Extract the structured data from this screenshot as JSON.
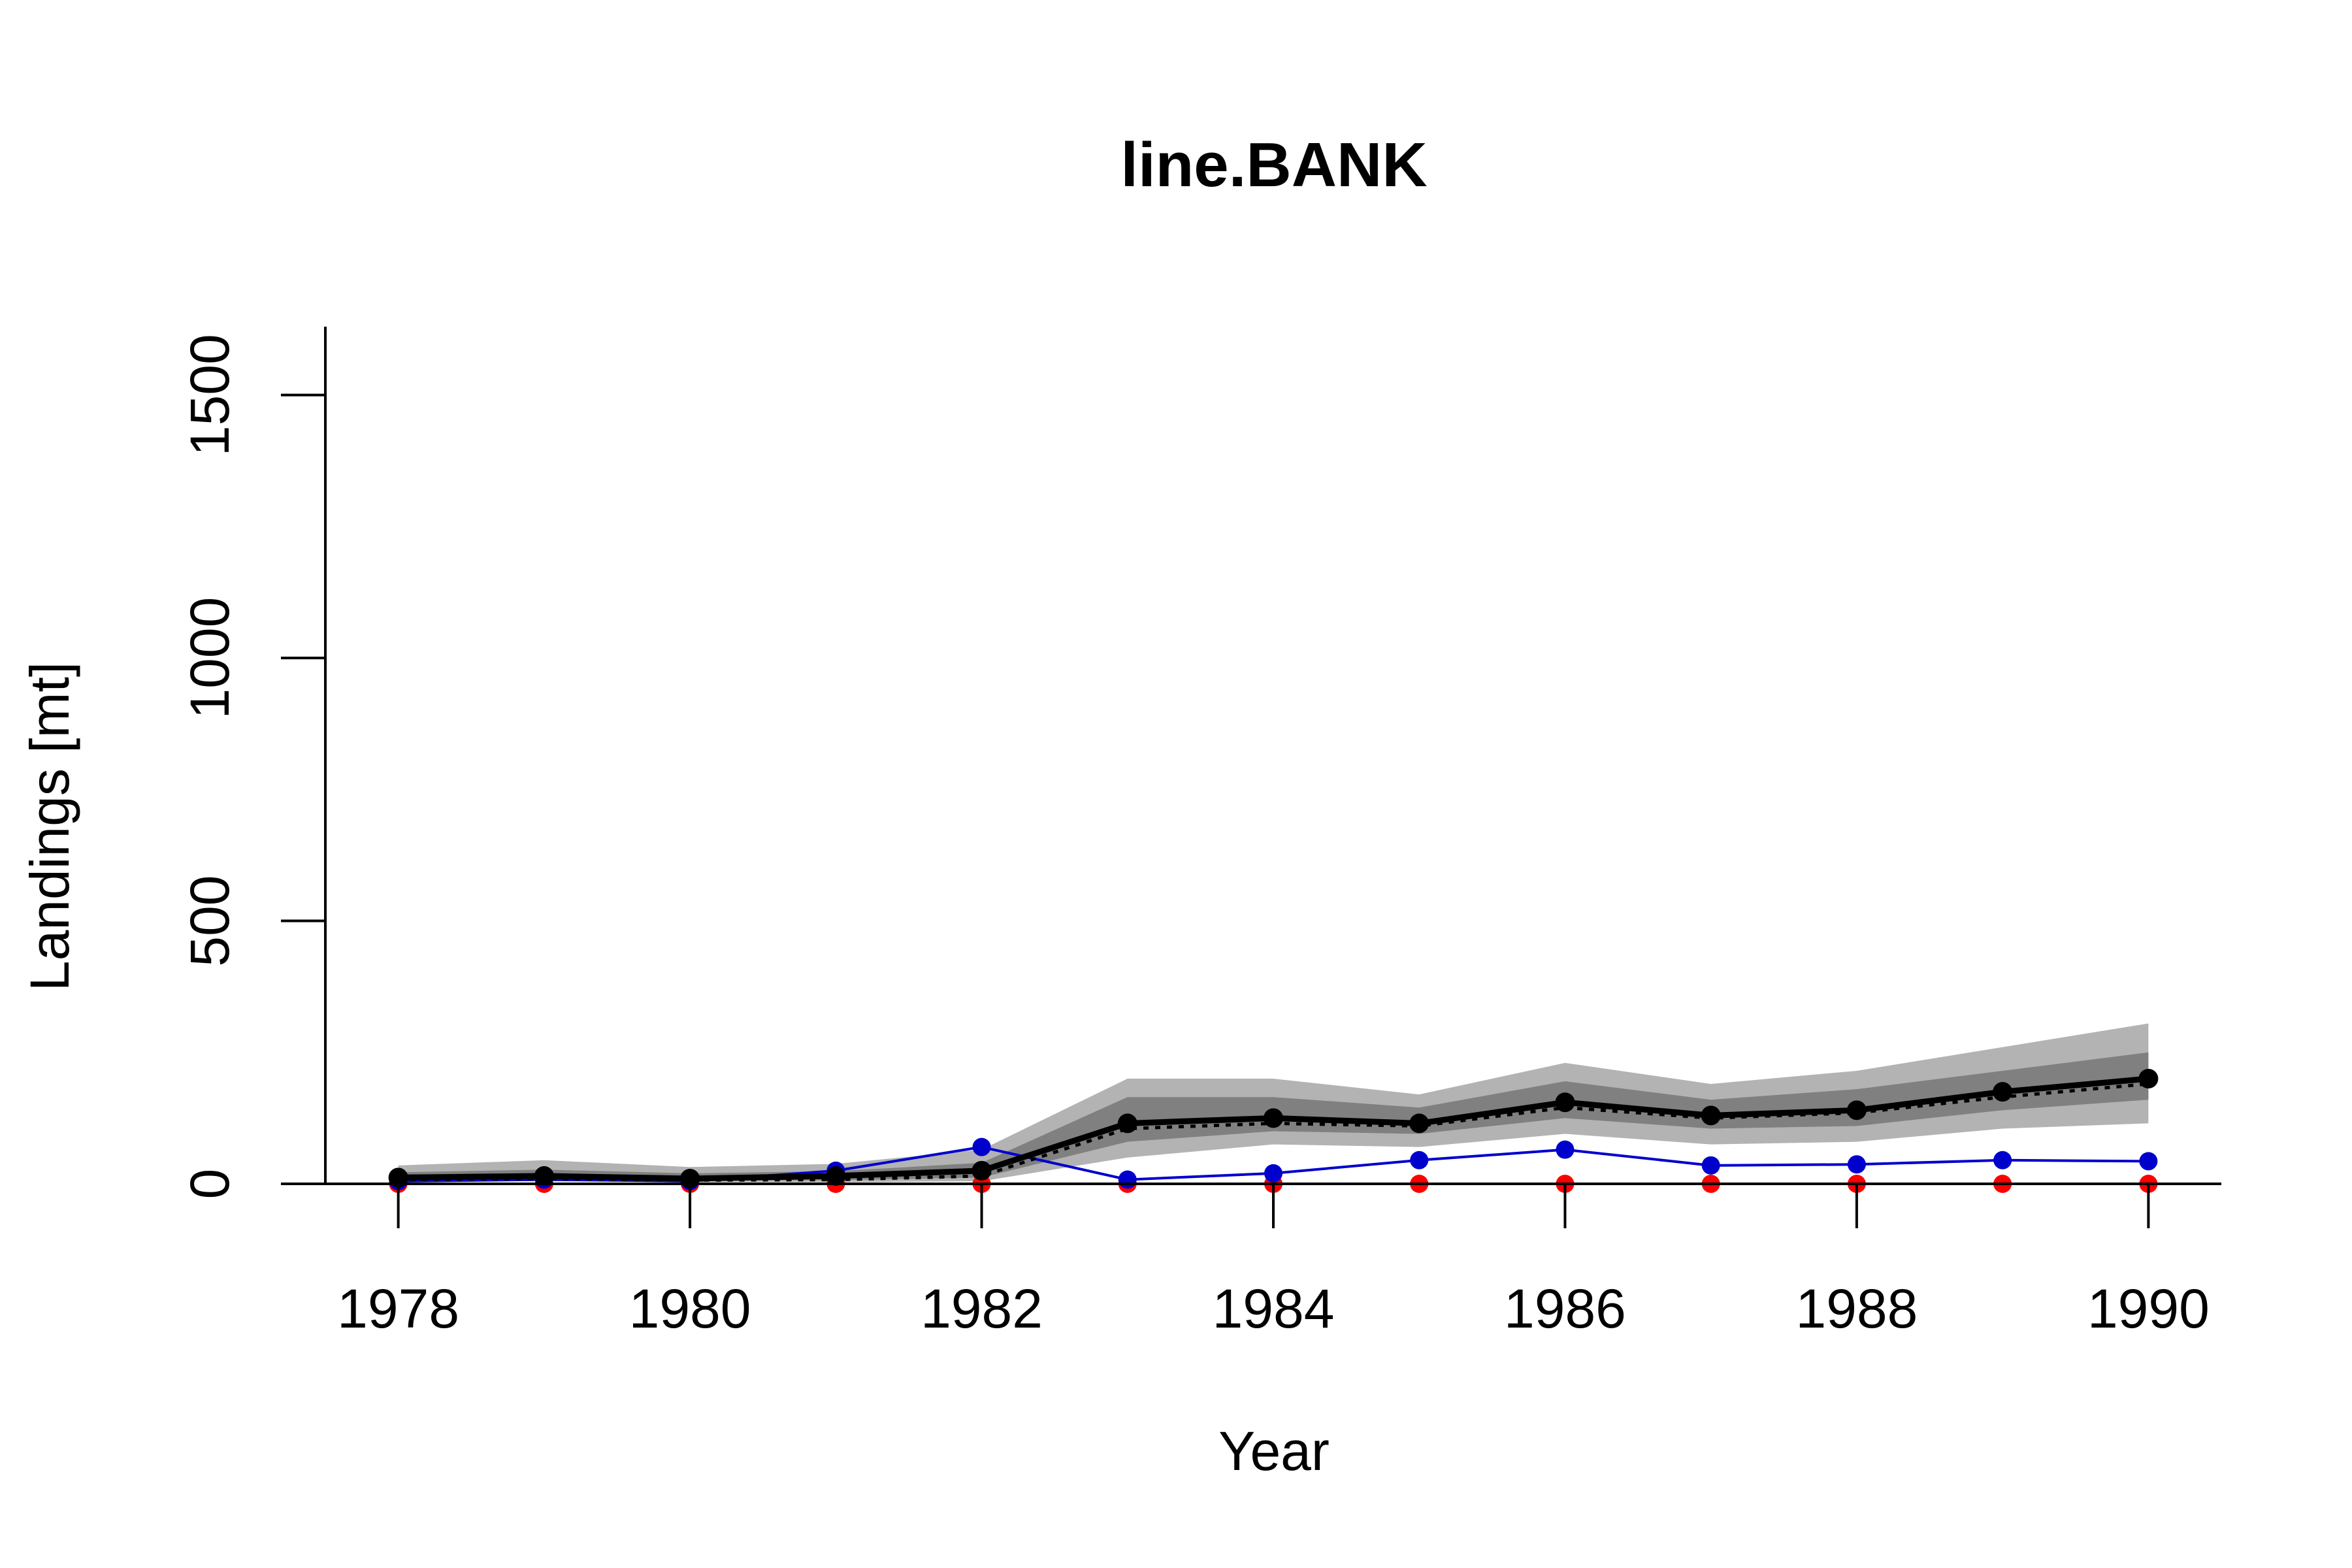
{
  "chart_data": {
    "type": "line",
    "title": "line.BANK",
    "xlabel": "Year",
    "ylabel": "Landings [mt]",
    "x": [
      1978,
      1979,
      1980,
      1981,
      1982,
      1983,
      1984,
      1985,
      1986,
      1987,
      1988,
      1989,
      1990
    ],
    "xlim": [
      1977.5,
      1990.5
    ],
    "ylim": [
      0,
      1630
    ],
    "xticks": [
      1978,
      1980,
      1982,
      1984,
      1986,
      1988,
      1990
    ],
    "yticks": [
      0,
      500,
      1000,
      1500
    ],
    "bands": [
      {
        "role": "outer interval",
        "color": "#b3b3b3",
        "lower": [
          5,
          5,
          3,
          3,
          5,
          50,
          75,
          70,
          95,
          75,
          80,
          105,
          115
        ],
        "upper": [
          35,
          45,
          32,
          38,
          65,
          200,
          200,
          170,
          230,
          190,
          215,
          260,
          305
        ]
      },
      {
        "role": "inner interval",
        "color": "#808080",
        "lower": [
          8,
          9,
          6,
          7,
          12,
          80,
          100,
          95,
          125,
          105,
          110,
          140,
          160
        ],
        "upper": [
          22,
          27,
          20,
          24,
          40,
          165,
          165,
          145,
          195,
          160,
          180,
          215,
          250
        ]
      }
    ],
    "series": [
      {
        "values": [
          12,
          15,
          10,
          15,
          25,
          115,
          125,
          115,
          155,
          130,
          140,
          175,
          200
        ],
        "color": "#000000",
        "style": "solid-thick",
        "markers": true
      },
      {
        "values": [
          8,
          10,
          7,
          8,
          15,
          105,
          115,
          110,
          145,
          125,
          135,
          165,
          190
        ],
        "color": "#000000",
        "style": "dotted",
        "markers": false
      },
      {
        "values": [
          5,
          8,
          5,
          25,
          70,
          8,
          20,
          45,
          65,
          35,
          37,
          45,
          43
        ],
        "color": "#0000cd",
        "style": "solid",
        "markers": true
      },
      {
        "values": [
          0,
          0,
          0,
          0,
          0,
          0,
          0,
          0,
          0,
          0,
          0,
          0,
          0
        ],
        "color": "#ff0000",
        "style": "solid",
        "markers": true
      }
    ],
    "grid": false,
    "legend": "none"
  }
}
